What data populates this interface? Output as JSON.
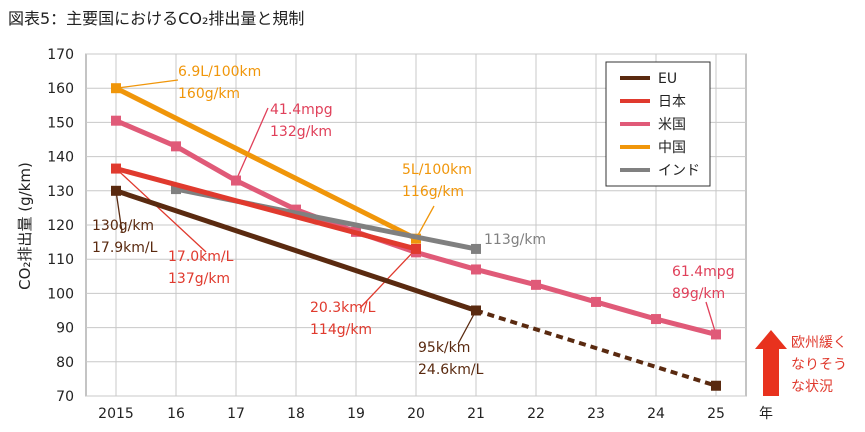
{
  "chart_data": {
    "type": "line",
    "title": "図表5：主要国におけるCO₂排出量と規制",
    "ylabel": "CO₂排出量 (g/km)",
    "xlabel": "年",
    "ylim": [
      70,
      170
    ],
    "yticks": [
      70,
      80,
      90,
      100,
      110,
      120,
      130,
      140,
      150,
      160,
      170
    ],
    "categories": [
      "2015",
      "16",
      "17",
      "18",
      "19",
      "20",
      "21",
      "22",
      "23",
      "24",
      "25"
    ],
    "series": [
      {
        "name": "EU",
        "color": "#5a2a10",
        "points": [
          [
            0,
            130
          ],
          [
            6,
            95
          ],
          [
            10,
            73
          ]
        ],
        "dashed_from": 1
      },
      {
        "name": "日本",
        "color": "#e03a2e",
        "points": [
          [
            0,
            136.5
          ],
          [
            5,
            113
          ]
        ]
      },
      {
        "name": "米国",
        "color": "#e05a78",
        "points": [
          [
            0,
            150.5
          ],
          [
            1,
            143
          ],
          [
            2,
            133
          ],
          [
            3,
            124.5
          ],
          [
            4,
            118
          ],
          [
            5,
            112
          ],
          [
            6,
            107
          ],
          [
            7,
            102.5
          ],
          [
            8,
            97.5
          ],
          [
            9,
            92.5
          ],
          [
            10,
            88
          ]
        ]
      },
      {
        "name": "中国",
        "color": "#f0960a",
        "points": [
          [
            0,
            160
          ],
          [
            5,
            116
          ]
        ]
      },
      {
        "name": "インド",
        "color": "#808080",
        "points": [
          [
            1,
            130.5
          ],
          [
            6,
            113
          ]
        ]
      }
    ],
    "annotations": [
      {
        "lines": [
          "6.9L/100km",
          "160g/km"
        ],
        "color": "#f0960a"
      },
      {
        "lines": [
          "41.4mpg",
          "132g/km"
        ],
        "color": "#e0405a"
      },
      {
        "lines": [
          "5L/100km",
          "116g/km"
        ],
        "color": "#f0960a"
      },
      {
        "lines": [
          "113g/km"
        ],
        "color": "#808080"
      },
      {
        "lines": [
          "61.4mpg",
          "89g/km"
        ],
        "color": "#e0405a"
      },
      {
        "lines": [
          "130g/km",
          "17.9km/L"
        ],
        "color": "#5a2a10"
      },
      {
        "lines": [
          "17.0km/L",
          "137g/km"
        ],
        "color": "#e03a2e"
      },
      {
        "lines": [
          "20.3km/L",
          "114g/km"
        ],
        "color": "#e03a2e"
      },
      {
        "lines": [
          "95k/km",
          "24.6km/L"
        ],
        "color": "#5a2a10"
      }
    ],
    "side_note": {
      "lines": [
        "欧州緩く",
        "なりそう",
        "な状況"
      ],
      "color": "#e03a2e"
    }
  }
}
